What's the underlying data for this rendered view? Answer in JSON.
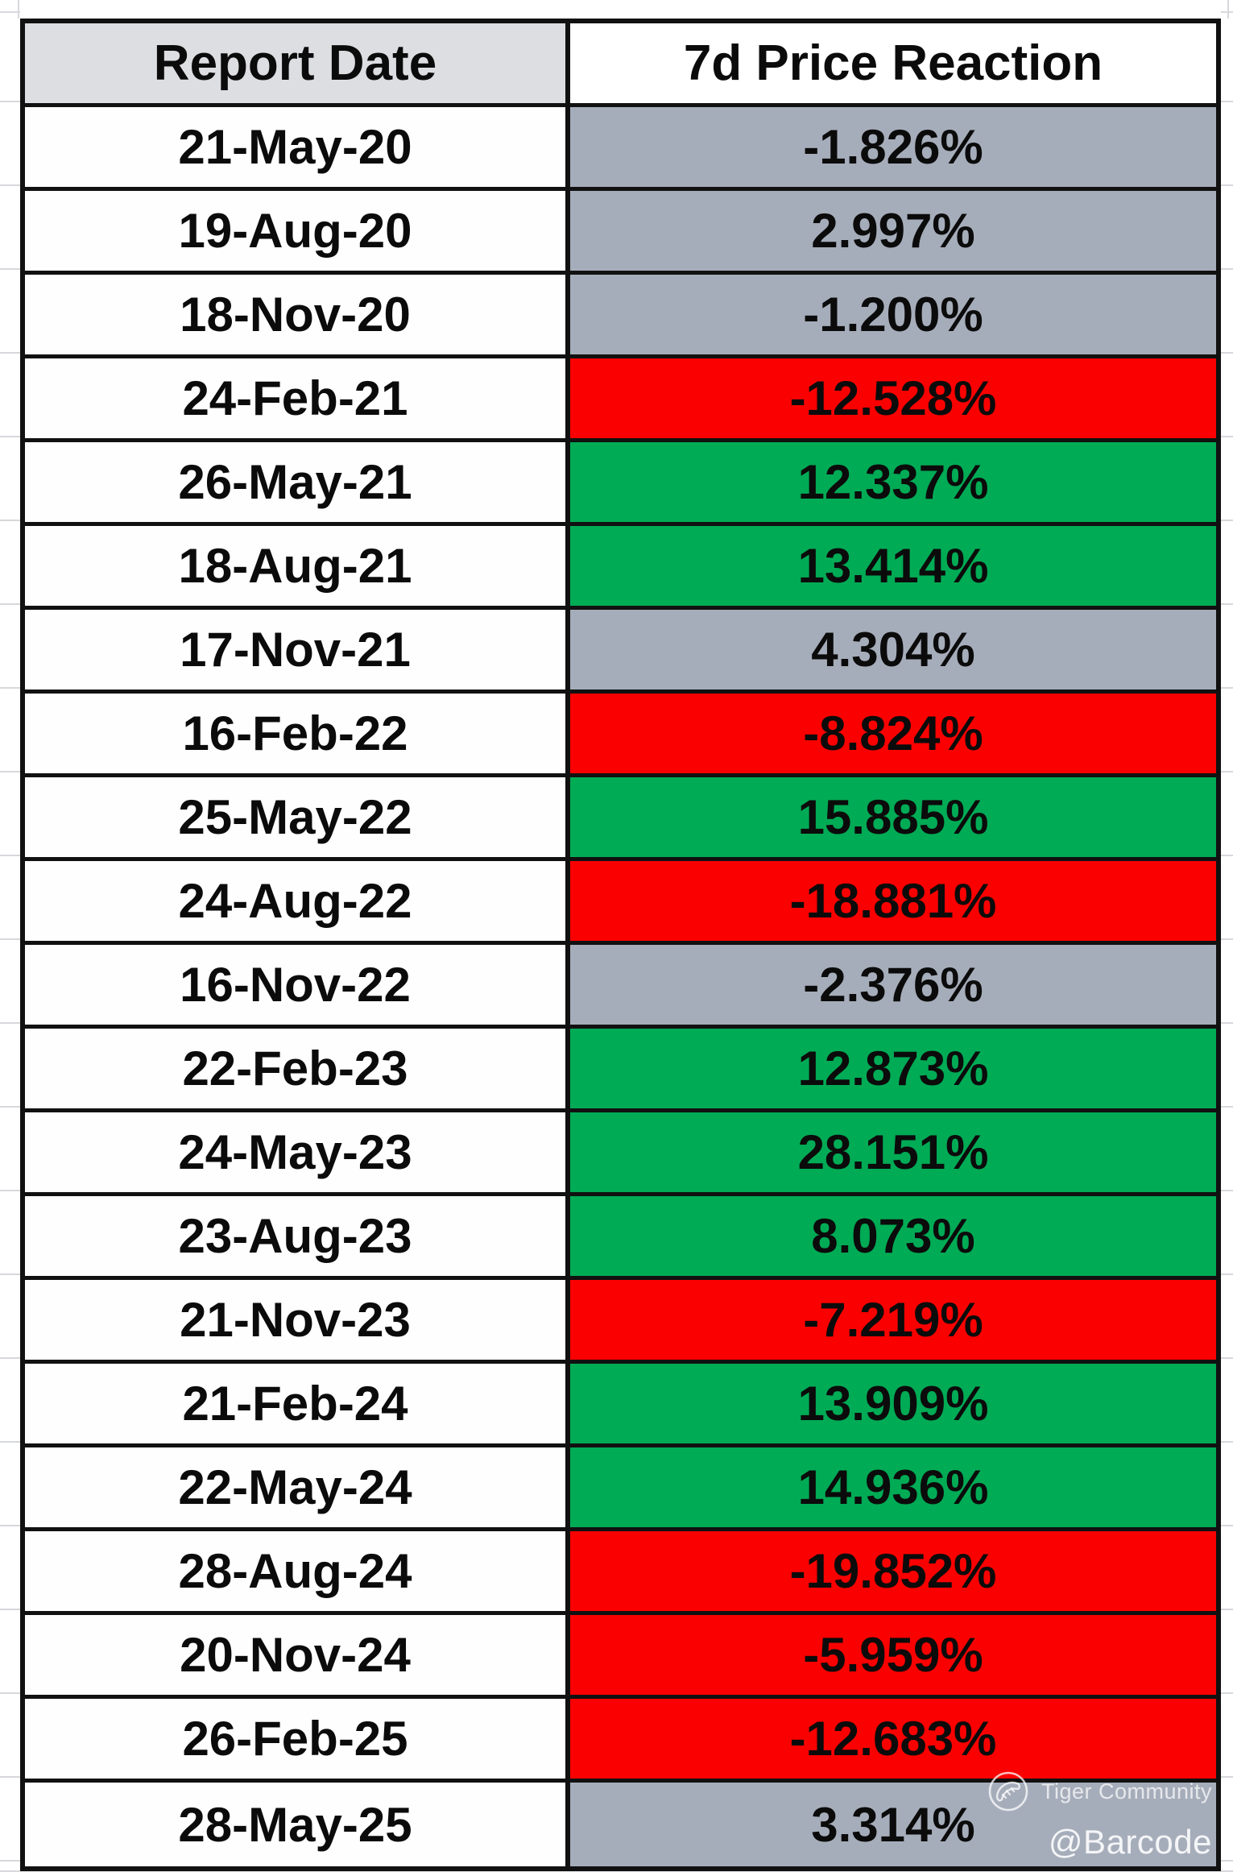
{
  "chart_data": {
    "type": "table",
    "columns": [
      "Report Date",
      "7d Price Reaction"
    ],
    "value_units": "percent",
    "rows": [
      {
        "date": "21-May-20",
        "reaction": "-1.826%",
        "value": -1.826,
        "cell_color": "gray"
      },
      {
        "date": "19-Aug-20",
        "reaction": "2.997%",
        "value": 2.997,
        "cell_color": "gray"
      },
      {
        "date": "18-Nov-20",
        "reaction": "-1.200%",
        "value": -1.2,
        "cell_color": "gray"
      },
      {
        "date": "24-Feb-21",
        "reaction": "-12.528%",
        "value": -12.528,
        "cell_color": "red"
      },
      {
        "date": "26-May-21",
        "reaction": "12.337%",
        "value": 12.337,
        "cell_color": "green"
      },
      {
        "date": "18-Aug-21",
        "reaction": "13.414%",
        "value": 13.414,
        "cell_color": "green"
      },
      {
        "date": "17-Nov-21",
        "reaction": "4.304%",
        "value": 4.304,
        "cell_color": "gray"
      },
      {
        "date": "16-Feb-22",
        "reaction": "-8.824%",
        "value": -8.824,
        "cell_color": "red"
      },
      {
        "date": "25-May-22",
        "reaction": "15.885%",
        "value": 15.885,
        "cell_color": "green"
      },
      {
        "date": "24-Aug-22",
        "reaction": "-18.881%",
        "value": -18.881,
        "cell_color": "red"
      },
      {
        "date": "16-Nov-22",
        "reaction": "-2.376%",
        "value": -2.376,
        "cell_color": "gray"
      },
      {
        "date": "22-Feb-23",
        "reaction": "12.873%",
        "value": 12.873,
        "cell_color": "green"
      },
      {
        "date": "24-May-23",
        "reaction": "28.151%",
        "value": 28.151,
        "cell_color": "green"
      },
      {
        "date": "23-Aug-23",
        "reaction": "8.073%",
        "value": 8.073,
        "cell_color": "green"
      },
      {
        "date": "21-Nov-23",
        "reaction": "-7.219%",
        "value": -7.219,
        "cell_color": "red"
      },
      {
        "date": "21-Feb-24",
        "reaction": "13.909%",
        "value": 13.909,
        "cell_color": "green"
      },
      {
        "date": "22-May-24",
        "reaction": "14.936%",
        "value": 14.936,
        "cell_color": "green"
      },
      {
        "date": "28-Aug-24",
        "reaction": "-19.852%",
        "value": -19.852,
        "cell_color": "red"
      },
      {
        "date": "20-Nov-24",
        "reaction": "-5.959%",
        "value": -5.959,
        "cell_color": "red"
      },
      {
        "date": "26-Feb-25",
        "reaction": "-12.683%",
        "value": -12.683,
        "cell_color": "red"
      },
      {
        "date": "28-May-25",
        "reaction": "3.314%",
        "value": 3.314,
        "cell_color": "gray"
      }
    ]
  },
  "colors": {
    "gray_cell": "#A6ADBA",
    "green_cell": "#00AB55",
    "red_cell": "#FB0000",
    "header_bg": "#DDDEE2",
    "white_cell": "#FEFEFE",
    "border": "#111111",
    "gridline": "#D7D8DC"
  },
  "watermark": {
    "logo_icon": "tiger-community-logo-icon",
    "community": "Tiger Community",
    "handle": "@Barcode"
  }
}
